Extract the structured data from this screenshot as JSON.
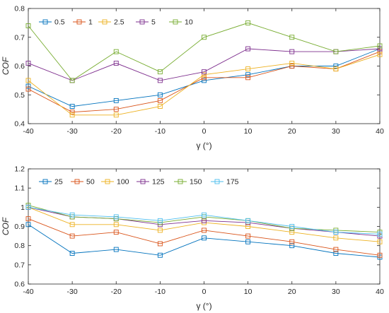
{
  "chart_data": [
    {
      "type": "line",
      "xlabel": "γ (°)",
      "ylabel": "COF",
      "xlim": [
        -40,
        40
      ],
      "ylim": [
        0.4,
        0.8
      ],
      "xticks": [
        "-40",
        "-30",
        "-20",
        "-10",
        "0",
        "10",
        "20",
        "30",
        "40"
      ],
      "yticks": [
        "0.4",
        "0.5",
        "0.6",
        "0.7",
        "0.8"
      ],
      "legend_position": "top-left",
      "x": [
        -40,
        -30,
        -20,
        -10,
        0,
        10,
        20,
        30,
        40
      ],
      "series": [
        {
          "name": "0.5",
          "color": "#0072BD",
          "values": [
            0.53,
            0.46,
            0.48,
            0.5,
            0.55,
            0.57,
            0.6,
            0.6,
            0.66
          ]
        },
        {
          "name": "1",
          "color": "#D95319",
          "values": [
            0.52,
            0.44,
            0.45,
            0.48,
            0.56,
            0.56,
            0.6,
            0.59,
            0.65
          ]
        },
        {
          "name": "2.5",
          "color": "#EDB120",
          "values": [
            0.55,
            0.43,
            0.43,
            0.46,
            0.57,
            0.59,
            0.61,
            0.59,
            0.64
          ]
        },
        {
          "name": "5",
          "color": "#7E2F8E",
          "values": [
            0.61,
            0.55,
            0.61,
            0.55,
            0.58,
            0.66,
            0.65,
            0.65,
            0.66
          ]
        },
        {
          "name": "10",
          "color": "#77AC30",
          "values": [
            0.74,
            0.55,
            0.65,
            0.58,
            0.7,
            0.75,
            0.7,
            0.65,
            0.67
          ]
        }
      ]
    },
    {
      "type": "line",
      "xlabel": "γ (°)",
      "ylabel": "COF",
      "xlim": [
        -40,
        40
      ],
      "ylim": [
        0.6,
        1.2
      ],
      "xticks": [
        "-40",
        "-30",
        "-20",
        "-10",
        "0",
        "10",
        "20",
        "30",
        "40"
      ],
      "yticks": [
        "0.6",
        "0.7",
        "0.8",
        "0.9",
        "1",
        "1.1",
        "1.2"
      ],
      "legend_position": "top-left",
      "x": [
        -40,
        -30,
        -20,
        -10,
        0,
        10,
        20,
        30,
        40
      ],
      "series": [
        {
          "name": "25",
          "color": "#0072BD",
          "values": [
            0.91,
            0.76,
            0.78,
            0.75,
            0.84,
            0.82,
            0.8,
            0.76,
            0.74
          ]
        },
        {
          "name": "50",
          "color": "#D95319",
          "values": [
            0.94,
            0.85,
            0.87,
            0.81,
            0.88,
            0.85,
            0.82,
            0.78,
            0.75
          ]
        },
        {
          "name": "100",
          "color": "#EDB120",
          "values": [
            1.0,
            0.91,
            0.91,
            0.88,
            0.92,
            0.9,
            0.87,
            0.84,
            0.82
          ]
        },
        {
          "name": "125",
          "color": "#7E2F8E",
          "values": [
            1.0,
            0.95,
            0.94,
            0.91,
            0.93,
            0.92,
            0.89,
            0.87,
            0.85
          ]
        },
        {
          "name": "150",
          "color": "#77AC30",
          "values": [
            1.01,
            0.95,
            0.94,
            0.92,
            0.95,
            0.93,
            0.89,
            0.88,
            0.87
          ]
        },
        {
          "name": "175",
          "color": "#4DBEEE",
          "values": [
            1.0,
            0.96,
            0.95,
            0.93,
            0.96,
            0.93,
            0.9,
            0.87,
            0.86
          ]
        }
      ]
    }
  ]
}
